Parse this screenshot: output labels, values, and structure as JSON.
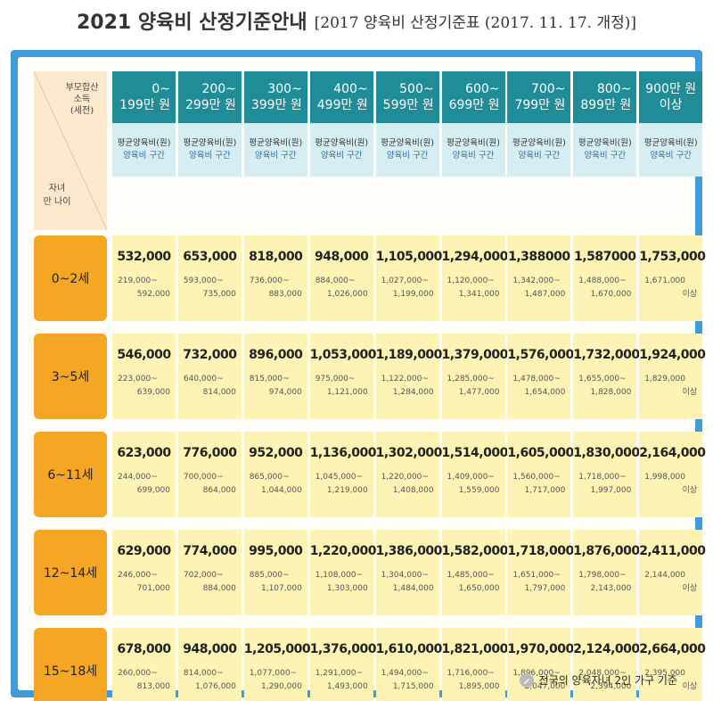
{
  "title": {
    "main": "2021 양육비 산정기준안내",
    "sub": "[2017 양육비 산정기준표 (2017. 11. 17. 개정)]"
  },
  "corner": {
    "income_lines": [
      "부모합산",
      "소득",
      "(세전)"
    ],
    "age_lines": [
      "자녀",
      "만 나이"
    ]
  },
  "columns": [
    {
      "top": "0~",
      "bottom": "199만 원"
    },
    {
      "top": "200~",
      "bottom": "299만 원"
    },
    {
      "top": "300~",
      "bottom": "399만 원"
    },
    {
      "top": "400~",
      "bottom": "499만 원"
    },
    {
      "top": "500~",
      "bottom": "599만 원"
    },
    {
      "top": "600~",
      "bottom": "699만 원"
    },
    {
      "top": "700~",
      "bottom": "799만 원"
    },
    {
      "top": "800~",
      "bottom": "899만 원"
    },
    {
      "top": "900만 원",
      "bottom": "이상"
    }
  ],
  "column_sub": {
    "avg": "평균양육비(원)",
    "range": "양육비 구간"
  },
  "rows": [
    {
      "label": "0~2세",
      "cells": [
        {
          "avg": "532,000",
          "from": "219,000~",
          "to": "592,000"
        },
        {
          "avg": "653,000",
          "from": "593,000~",
          "to": "735,000"
        },
        {
          "avg": "818,000",
          "from": "736,000~",
          "to": "883,000"
        },
        {
          "avg": "948,000",
          "from": "884,000~",
          "to": "1,026,000"
        },
        {
          "avg": "1,105,000",
          "from": "1,027,000~",
          "to": "1,199,000"
        },
        {
          "avg": "1,294,000",
          "from": "1,120,000~",
          "to": "1,341,000"
        },
        {
          "avg": "1,388000",
          "from": "1,342,000~",
          "to": "1,487,000"
        },
        {
          "avg": "1,587000",
          "from": "1,488,000~",
          "to": "1,670,000"
        },
        {
          "avg": "1,753,000",
          "from": "1,671,000",
          "to": "이상"
        }
      ]
    },
    {
      "label": "3~5세",
      "cells": [
        {
          "avg": "546,000",
          "from": "223,000~",
          "to": "639,000"
        },
        {
          "avg": "732,000",
          "from": "640,000~",
          "to": "814,000"
        },
        {
          "avg": "896,000",
          "from": "815,000~",
          "to": "974,000"
        },
        {
          "avg": "1,053,000",
          "from": "975,000~",
          "to": "1,121,000"
        },
        {
          "avg": "1,189,000",
          "from": "1,122,000~",
          "to": "1,284,000"
        },
        {
          "avg": "1,379,000",
          "from": "1,285,000~",
          "to": "1,477,000"
        },
        {
          "avg": "1,576,000",
          "from": "1,478,000~",
          "to": "1,654,000"
        },
        {
          "avg": "1,732,000",
          "from": "1,655,000~",
          "to": "1,828,000"
        },
        {
          "avg": "1,924,000",
          "from": "1,829,000",
          "to": "이상"
        }
      ]
    },
    {
      "label": "6~11세",
      "cells": [
        {
          "avg": "623,000",
          "from": "244,000~",
          "to": "699,000"
        },
        {
          "avg": "776,000",
          "from": "700,000~",
          "to": "864,000"
        },
        {
          "avg": "952,000",
          "from": "865,000~",
          "to": "1,044,000"
        },
        {
          "avg": "1,136,000",
          "from": "1,045,000~",
          "to": "1,219,000"
        },
        {
          "avg": "1,302,000",
          "from": "1,220,000~",
          "to": "1,408,000"
        },
        {
          "avg": "1,514,000",
          "from": "1,409,000~",
          "to": "1,559,000"
        },
        {
          "avg": "1,605,000",
          "from": "1,560,000~",
          "to": "1,717,000"
        },
        {
          "avg": "1,830,000",
          "from": "1,718,000~",
          "to": "1,997,000"
        },
        {
          "avg": "2,164,000",
          "from": "1,998,000",
          "to": "이상"
        }
      ]
    },
    {
      "label": "12~14세",
      "cells": [
        {
          "avg": "629,000",
          "from": "246,000~",
          "to": "701,000"
        },
        {
          "avg": "774,000",
          "from": "702,000~",
          "to": "884,000"
        },
        {
          "avg": "995,000",
          "from": "885,000~",
          "to": "1,107,000"
        },
        {
          "avg": "1,220,000",
          "from": "1,108,000~",
          "to": "1,303,000"
        },
        {
          "avg": "1,386,000",
          "from": "1,304,000~",
          "to": "1,484,000"
        },
        {
          "avg": "1,582,000",
          "from": "1,485,000~",
          "to": "1,650,000"
        },
        {
          "avg": "1,718,000",
          "from": "1,651,000~",
          "to": "1,797,000"
        },
        {
          "avg": "1,876,000",
          "from": "1,798,000~",
          "to": "2,143,000"
        },
        {
          "avg": "2,411,000",
          "from": "2,144,000",
          "to": "이상"
        }
      ]
    },
    {
      "label": "15~18세",
      "cells": [
        {
          "avg": "678,000",
          "from": "260,000~",
          "to": "813,000"
        },
        {
          "avg": "948,000",
          "from": "814,000~",
          "to": "1,076,000"
        },
        {
          "avg": "1,205,000",
          "from": "1,077,000~",
          "to": "1,290,000"
        },
        {
          "avg": "1,376,000",
          "from": "1,291,000~",
          "to": "1,493,000"
        },
        {
          "avg": "1,610,000",
          "from": "1,494,000~",
          "to": "1,715,000"
        },
        {
          "avg": "1,821,000",
          "from": "1,716,000~",
          "to": "1,895,000"
        },
        {
          "avg": "1,970,000",
          "from": "1,896,000~",
          "to": "2,047,000"
        },
        {
          "avg": "2,124,000",
          "from": "2,048,000~",
          "to": "2,394,000"
        },
        {
          "avg": "2,664,000",
          "from": "2,395,000",
          "to": "이상"
        }
      ]
    }
  ],
  "footnote": "전국의 양육자녀 2인 가구 기준",
  "icons": {
    "footnote_icon": "pen-icon"
  },
  "colors": {
    "frame": "#3f9bd9",
    "header": "#1f8c97",
    "row_label": "#f5a623",
    "cell": "#fdf3b5"
  }
}
